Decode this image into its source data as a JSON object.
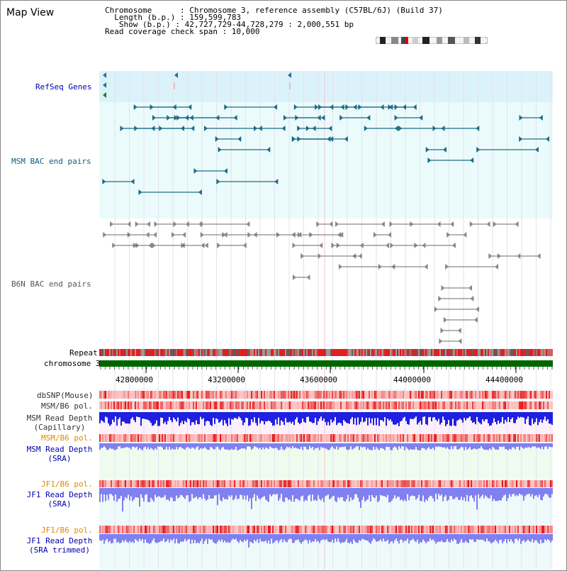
{
  "header": {
    "title": "Map View",
    "chromosome": "Chromosome      : Chromosome 3, reference assembly (C57BL/6J) (Build 37)",
    "length": "Length (b.p.) : 159,599,783",
    "show": "Show (b.p.) : 42,727,729-44,728,279 : 2,000,551 bp",
    "coverage": "Read coverage check span : 10,000"
  },
  "tracks": {
    "refseq": "RefSeq Genes",
    "msm_bac": "MSM BAC end pairs",
    "b6n_bac": "B6N BAC end pairs",
    "repeat": "Repeat",
    "chromosome": "chromosome 3",
    "dbsnp": "dbSNP(Mouse)",
    "msm_b6_pol": "MSM/B6 pol.",
    "msm_depth_cap_1": "MSM Read Depth",
    "msm_depth_cap_2": "(Capillary)",
    "msm_b6_pol_2": "MSM/B6 pol.",
    "msm_depth_sra_1": "MSM Read Depth",
    "msm_depth_sra_2": "(SRA)",
    "jf1_b6_pol": "JF1/B6 pol.",
    "jf1_depth_sra_1": "JF1 Read Depth",
    "jf1_depth_sra_2": "(SRA)",
    "jf1_b6_pol_2": "JF1/B6 pol.",
    "jf1_depth_trim_1": "JF1 Read Depth",
    "jf1_depth_trim_2": "(SRA trimmed)"
  },
  "axis": {
    "ticks": [
      "42800000",
      "43200000",
      "43600000",
      "44000000",
      "44400000"
    ]
  },
  "colors": {
    "refseq_bg": "#dcf2fa",
    "bac_bg": "#ebfbfb",
    "msm_feature": "#1f6b86",
    "b6n_feature": "#6b6b6b",
    "chromosome_bar": "#006600",
    "label_blue": "#0000aa",
    "label_teal": "#0b5f7a",
    "label_orange": "#e08a00",
    "depth_blue": "#2020e0",
    "depth_light": "#8080f0"
  }
}
